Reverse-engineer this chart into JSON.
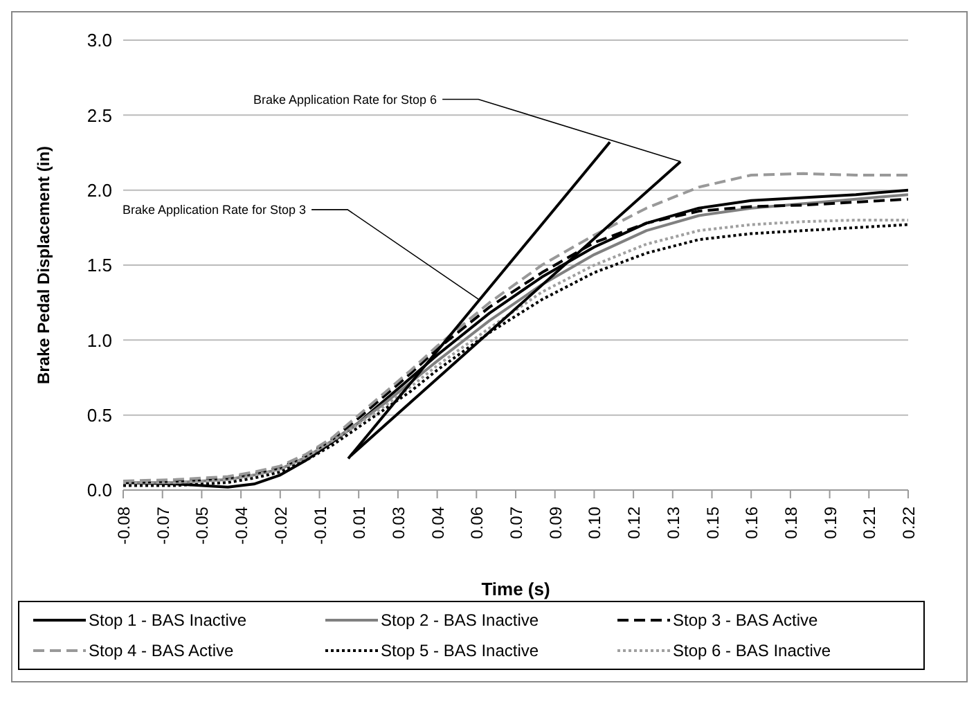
{
  "chart_data": {
    "type": "line",
    "xlabel": "Time (s)",
    "ylabel": "Brake Pedal Displacement (in)",
    "x": [
      -0.08,
      -0.06,
      -0.04,
      -0.03,
      -0.02,
      -0.01,
      0,
      0.01,
      0.02,
      0.03,
      0.04,
      0.06,
      0.08,
      0.1,
      0.12,
      0.14,
      0.16,
      0.18,
      0.2,
      0.22
    ],
    "series": [
      {
        "name": "Stop 1 - BAS Inactive",
        "color": "#000000",
        "line_style": "solid",
        "values": [
          0.05,
          0.04,
          0.02,
          0.04,
          0.1,
          0.2,
          0.32,
          0.45,
          0.6,
          0.75,
          0.9,
          1.18,
          1.42,
          1.62,
          1.78,
          1.88,
          1.93,
          1.95,
          1.97,
          2.0
        ]
      },
      {
        "name": "Stop 2 - BAS Inactive",
        "color": "#808080",
        "line_style": "solid",
        "values": [
          0.05,
          0.05,
          0.07,
          0.1,
          0.14,
          0.22,
          0.33,
          0.45,
          0.58,
          0.72,
          0.86,
          1.13,
          1.37,
          1.57,
          1.73,
          1.83,
          1.88,
          1.91,
          1.94,
          1.97
        ]
      },
      {
        "name": "Stop 3 - BAS Active",
        "color": "#000000",
        "line_style": "dashed",
        "values": [
          0.05,
          0.06,
          0.08,
          0.11,
          0.15,
          0.23,
          0.34,
          0.48,
          0.63,
          0.78,
          0.94,
          1.22,
          1.45,
          1.65,
          1.78,
          1.86,
          1.89,
          1.9,
          1.92,
          1.94
        ]
      },
      {
        "name": "Stop 4 - BAS Active",
        "color": "#999999",
        "line_style": "dashed",
        "values": [
          0.06,
          0.07,
          0.09,
          0.12,
          0.16,
          0.24,
          0.35,
          0.5,
          0.65,
          0.8,
          0.96,
          1.25,
          1.5,
          1.7,
          1.88,
          2.02,
          2.1,
          2.11,
          2.1,
          2.1
        ]
      },
      {
        "name": "Stop 5 - BAS Inactive",
        "color": "#000000",
        "line_style": "dotted",
        "values": [
          0.03,
          0.03,
          0.05,
          0.08,
          0.12,
          0.2,
          0.3,
          0.42,
          0.54,
          0.66,
          0.8,
          1.05,
          1.27,
          1.45,
          1.58,
          1.67,
          1.71,
          1.73,
          1.75,
          1.77
        ]
      },
      {
        "name": "Stop 6 - BAS Inactive",
        "color": "#a0a0a0",
        "line_style": "dotted",
        "values": [
          0.05,
          0.05,
          0.07,
          0.1,
          0.14,
          0.22,
          0.33,
          0.44,
          0.56,
          0.69,
          0.83,
          1.08,
          1.32,
          1.5,
          1.64,
          1.73,
          1.77,
          1.79,
          1.8,
          1.8
        ]
      },
      {
        "type": "line",
        "color": "#000000",
        "line_style": "solid",
        "x": [
          0.006,
          0.106
        ],
        "values": [
          0.21,
          2.32
        ]
      },
      {
        "type": "line",
        "color": "#000000",
        "line_style": "solid",
        "x": [
          0.007,
          0.133
        ],
        "values": [
          0.23,
          2.19
        ]
      }
    ],
    "annotations": [
      {
        "text": "Brake Application Rate for Stop 6",
        "x": 0.133,
        "y": 2.19
      },
      {
        "text": "Brake Application Rate for Stop 3",
        "x": 0.056,
        "y": 1.27
      }
    ],
    "xlim": [
      -0.08,
      0.22
    ],
    "xticks": [
      -0.08,
      {
        "value": -0.065,
        "label": "-0.07"
      },
      -0.05,
      {
        "value": -0.035,
        "label": "-0.04"
      },
      -0.02,
      {
        "value": -0.005,
        "label": "-0.01"
      },
      0.01,
      {
        "value": 0.025,
        "label": "0.03"
      },
      0.04,
      {
        "value": 0.055,
        "label": "0.06"
      },
      0.07,
      {
        "value": 0.085,
        "label": "0.09"
      },
      {
        "value": 0.1,
        "label": "0.10"
      },
      {
        "value": 0.115,
        "label": "0.12"
      },
      0.13,
      {
        "value": 0.145,
        "label": "0.15"
      },
      0.16,
      {
        "value": 0.175,
        "label": "0.18"
      },
      0.19,
      {
        "value": 0.205,
        "label": "0.21"
      },
      0.22
    ],
    "ylim": [
      0,
      3
    ],
    "yticks": [
      {
        "value": 0,
        "label": "0.0"
      },
      {
        "value": 0.5,
        "label": "0.5"
      },
      {
        "value": 1,
        "label": "1.0"
      },
      {
        "value": 1.5,
        "label": "1.5"
      },
      {
        "value": 2,
        "label": "2.0"
      },
      {
        "value": 2.5,
        "label": "2.5"
      },
      {
        "value": 3,
        "label": "3.0"
      }
    ],
    "grid": "y",
    "legend": "bottom",
    "marker": "none"
  }
}
